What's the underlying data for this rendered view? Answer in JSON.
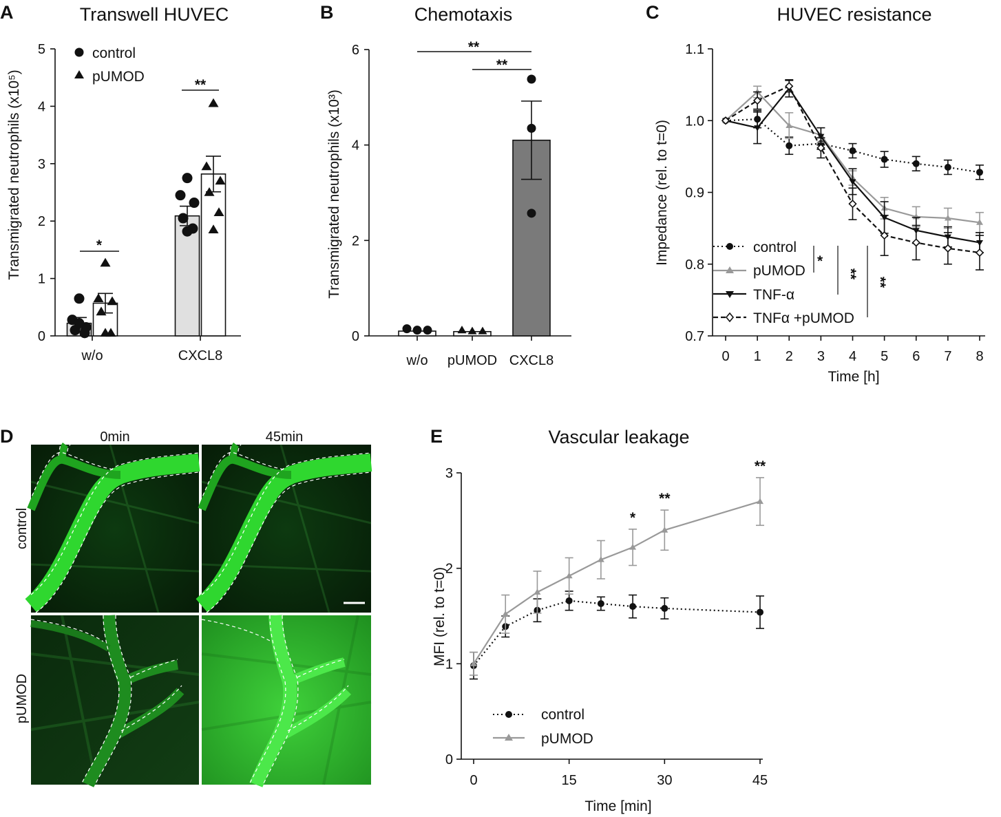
{
  "panels": {
    "A": {
      "letter": "A"
    },
    "B": {
      "letter": "B"
    },
    "C": {
      "letter": "C"
    },
    "D": {
      "letter": "D"
    },
    "E": {
      "letter": "E"
    }
  },
  "chart_data": [
    {
      "id": "A",
      "type": "bar",
      "title": "Transwell HUVEC",
      "ylabel": "Transmigrated neutrophils (x10⁵)",
      "xlabel": "",
      "ylim": [
        0,
        5
      ],
      "yticks": [
        "0",
        "1",
        "2",
        "3",
        "4",
        "5"
      ],
      "categories": [
        "w/o",
        "CXCL8"
      ],
      "legend_position": "top-left",
      "series": [
        {
          "name": "control",
          "marker": "circle",
          "fill": "#e0e0e0",
          "values": [
            0.22,
            2.09
          ],
          "sem": [
            0.1,
            0.17
          ],
          "points": [
            [
              0.65,
              0.28,
              0.15,
              0.1,
              0.05,
              0.22
            ],
            [
              2.75,
              2.45,
              2.32,
              2.05,
              1.87,
              1.82
            ]
          ]
        },
        {
          "name": "pUMOD",
          "marker": "triangle",
          "fill": "#ffffff",
          "values": [
            0.57,
            2.82
          ],
          "sem": [
            0.17,
            0.31
          ],
          "points": [
            [
              1.27,
              0.65,
              0.6,
              0.42,
              0.05,
              0.05
            ],
            [
              4.05,
              2.95,
              2.7,
              2.5,
              2.15,
              1.85
            ]
          ]
        }
      ],
      "significance": [
        {
          "group": "w/o",
          "label": "*"
        },
        {
          "group": "CXCL8",
          "label": "**"
        }
      ]
    },
    {
      "id": "B",
      "type": "bar",
      "title": "Chemotaxis",
      "ylabel": "Transmigrated neutrophils (x10³)",
      "xlabel": "",
      "ylim": [
        0,
        6
      ],
      "yticks": [
        "0",
        "2",
        "4",
        "6"
      ],
      "categories": [
        "w/o",
        "pUMOD",
        "CXCL8"
      ],
      "values": [
        0.1,
        0.09,
        4.1
      ],
      "sem": [
        0.02,
        0.02,
        0.82
      ],
      "fills": [
        "#ffffff",
        "#ffffff",
        "#7a7a7a"
      ],
      "points": [
        [
          0.15,
          0.12,
          0.12
        ],
        [
          0.12,
          0.1,
          0.1
        ],
        [
          5.38,
          4.35,
          2.57
        ]
      ],
      "significance": [
        {
          "from": "w/o",
          "to": "CXCL8",
          "label": "**"
        },
        {
          "from": "pUMOD",
          "to": "CXCL8",
          "label": "**"
        }
      ]
    },
    {
      "id": "C",
      "type": "line",
      "title": "HUVEC resistance",
      "xlabel": "Time [h]",
      "ylabel": "Impedance (rel. to t=0)",
      "x": [
        0,
        1,
        2,
        3,
        4,
        5,
        6,
        7,
        8
      ],
      "xlim": [
        0,
        8
      ],
      "ylim": [
        0.7,
        1.1
      ],
      "yticks": [
        "0.7",
        "0.8",
        "0.9",
        "1.0",
        "1.1"
      ],
      "xticks": [
        "0",
        "1",
        "2",
        "3",
        "4",
        "5",
        "6",
        "7",
        "8"
      ],
      "legend_position": "bottom-left",
      "series": [
        {
          "name": "control",
          "color": "#111111",
          "dash": "dotted",
          "marker": "circle",
          "values": [
            1.0,
            1.002,
            0.965,
            0.968,
            0.958,
            0.946,
            0.94,
            0.935,
            0.928
          ],
          "err": [
            0,
            0.012,
            0.012,
            0.008,
            0.01,
            0.011,
            0.01,
            0.01,
            0.01
          ]
        },
        {
          "name": "pUMOD",
          "color": "#999999",
          "dash": "solid",
          "marker": "triangle",
          "values": [
            1.0,
            1.04,
            0.993,
            0.98,
            0.92,
            0.878,
            0.866,
            0.864,
            0.858
          ],
          "err": [
            0,
            0.008,
            0.018,
            0.01,
            0.01,
            0.015,
            0.014,
            0.014,
            0.014
          ]
        },
        {
          "name": "TNF-α",
          "color": "#111111",
          "dash": "solid",
          "marker": "triangle-down",
          "values": [
            1.0,
            0.99,
            1.045,
            0.978,
            0.915,
            0.865,
            0.847,
            0.838,
            0.83
          ],
          "err": [
            0,
            0.022,
            0.012,
            0.012,
            0.018,
            0.022,
            0.018,
            0.014,
            0.014
          ]
        },
        {
          "name": "TNFα +pUMOD",
          "color": "#111111",
          "dash": "dashed",
          "marker": "diamond-open",
          "values": [
            1.0,
            1.028,
            1.048,
            0.962,
            0.884,
            0.84,
            0.83,
            0.822,
            0.816
          ],
          "err": [
            0,
            0.012,
            0.008,
            0.014,
            0.022,
            0.028,
            0.024,
            0.022,
            0.024
          ]
        }
      ],
      "significance": [
        {
          "between": [
            "control",
            "pUMOD"
          ],
          "label": "*"
        },
        {
          "between": [
            "control",
            "TNF-α"
          ],
          "label": "**"
        },
        {
          "between": [
            "control",
            "TNFα +pUMOD"
          ],
          "label": "**"
        }
      ]
    },
    {
      "id": "E",
      "type": "line",
      "title": "Vascular leakage",
      "xlabel": "Time [min]",
      "ylabel": "MFI (rel. to t=0)",
      "xlim": [
        0,
        45
      ],
      "ylim": [
        0,
        3
      ],
      "xticks": [
        "0",
        "15",
        "30",
        "45"
      ],
      "yticks": [
        "0",
        "1",
        "2",
        "3"
      ],
      "legend_position": "bottom-left",
      "series": [
        {
          "name": "control",
          "color": "#111111",
          "dash": "dotted",
          "marker": "circle",
          "x": [
            0,
            5,
            10,
            15,
            20,
            25,
            30,
            45
          ],
          "values": [
            0.98,
            1.39,
            1.56,
            1.66,
            1.63,
            1.6,
            1.58,
            1.54
          ],
          "err": [
            0.14,
            0.11,
            0.12,
            0.1,
            0.07,
            0.12,
            0.11,
            0.17
          ]
        },
        {
          "name": "pUMOD",
          "color": "#999999",
          "dash": "solid",
          "marker": "triangle",
          "x": [
            0,
            5,
            10,
            15,
            20,
            25,
            30,
            45
          ],
          "values": [
            1.0,
            1.52,
            1.75,
            1.92,
            2.09,
            2.22,
            2.4,
            2.7
          ],
          "err": [
            0.12,
            0.2,
            0.22,
            0.19,
            0.2,
            0.19,
            0.21,
            0.25
          ]
        }
      ],
      "significance": [
        {
          "x": 25,
          "label": "*"
        },
        {
          "x": 30,
          "label": "**"
        },
        {
          "x": 45,
          "label": "**"
        }
      ]
    }
  ],
  "microscopy": {
    "columns": [
      "0min",
      "45min"
    ],
    "rows": [
      "control",
      "pUMOD"
    ],
    "color": "#2ecc2e"
  }
}
